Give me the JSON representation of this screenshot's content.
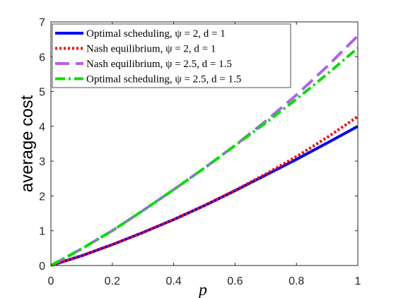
{
  "chart_data": {
    "type": "line",
    "xlabel": "p",
    "ylabel": "average cost",
    "xlim": [
      0,
      1
    ],
    "ylim": [
      0,
      7
    ],
    "xticks": [
      "0",
      "0.2",
      "0.4",
      "0.6",
      "0.8",
      "1"
    ],
    "yticks": [
      "0",
      "1",
      "2",
      "3",
      "4",
      "5",
      "6",
      "7"
    ],
    "grid": false,
    "legend_position": "top-left",
    "x": [
      0,
      0.1,
      0.2,
      0.3,
      0.4,
      0.5,
      0.6,
      0.7,
      0.8,
      0.9,
      1.0
    ],
    "series": [
      {
        "name": "Optimal scheduling, ψ = 2, d = 1",
        "color": "#0000ff",
        "style": "solid",
        "values": [
          0,
          0.28,
          0.6,
          0.95,
          1.32,
          1.72,
          2.15,
          2.6,
          3.05,
          3.52,
          4.0
        ]
      },
      {
        "name": "Nash equilibrium, ψ = 2, d = 1",
        "color": "#ff0000",
        "style": "dotted",
        "values": [
          0,
          0.28,
          0.6,
          0.95,
          1.32,
          1.72,
          2.16,
          2.63,
          3.13,
          3.68,
          4.28
        ]
      },
      {
        "name": "Nash equilibrium, ψ = 2.5, d = 1.5",
        "color": "#b35ff0",
        "style": "dashed",
        "values": [
          0,
          0.48,
          1.0,
          1.58,
          2.18,
          2.8,
          3.45,
          4.15,
          4.9,
          5.72,
          6.6
        ]
      },
      {
        "name": "Optimal scheduling, ψ = 2.5, d = 1.5",
        "color": "#00e000",
        "style": "dashdot",
        "values": [
          0,
          0.48,
          1.0,
          1.58,
          2.18,
          2.8,
          3.45,
          4.1,
          4.78,
          5.5,
          6.25
        ]
      }
    ]
  }
}
